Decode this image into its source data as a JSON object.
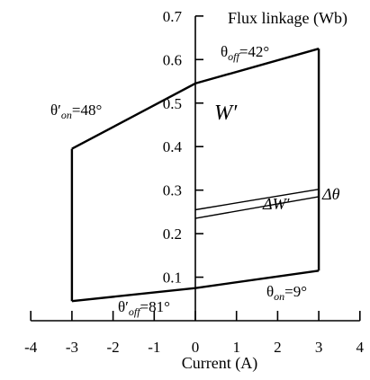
{
  "chart_data": {
    "type": "line",
    "title": "",
    "xlabel": "Current (A)",
    "ylabel": "Flux linkage (Wb)",
    "xlim": [
      -4,
      4
    ],
    "ylim": [
      0,
      0.7
    ],
    "x_ticks": [
      -4,
      -3,
      -2,
      -1,
      0,
      1,
      2,
      3,
      4
    ],
    "x_tick_labels": [
      "-4",
      "-3",
      "-2",
      "-1",
      "0",
      "1",
      "2",
      "3",
      "4"
    ],
    "y_ticks": [
      0.1,
      0.2,
      0.3,
      0.4,
      0.5,
      0.6,
      0.7
    ],
    "y_tick_labels": [
      "0.1",
      "0.2",
      "0.3",
      "0.4",
      "0.5",
      "0.6",
      "0.7"
    ],
    "grid": false,
    "series": [
      {
        "points": [
          [
            -3,
            0.395
          ],
          [
            0,
            0.545
          ],
          [
            3,
            0.625
          ]
        ]
      },
      {
        "points": [
          [
            -3,
            0.045
          ],
          [
            0,
            0.075
          ],
          [
            3,
            0.115
          ]
        ]
      },
      {
        "points": [
          [
            -3,
            0.045
          ],
          [
            -3,
            0.395
          ]
        ]
      },
      {
        "points": [
          [
            3,
            0.115
          ],
          [
            3,
            0.625
          ]
        ]
      },
      {
        "points": [
          [
            0,
            0.255
          ],
          [
            3,
            0.302
          ]
        ]
      },
      {
        "points": [
          [
            0,
            0.235
          ],
          [
            3,
            0.285
          ]
        ]
      }
    ],
    "annotations": {
      "theta_off": {
        "sym": "θ",
        "sub": "off",
        "val": "=42°"
      },
      "theta_on_prime": {
        "sym": "θ′",
        "sub": "on",
        "val": "=48°"
      },
      "W_prime": "W′",
      "delta_W_prime": "ΔW′",
      "delta_theta": "Δθ",
      "theta_off_prime": {
        "sym": "θ′",
        "sub": "off",
        "val": "=81°"
      },
      "theta_on": {
        "sym": "θ",
        "sub": "on",
        "val": "=9°"
      }
    }
  }
}
